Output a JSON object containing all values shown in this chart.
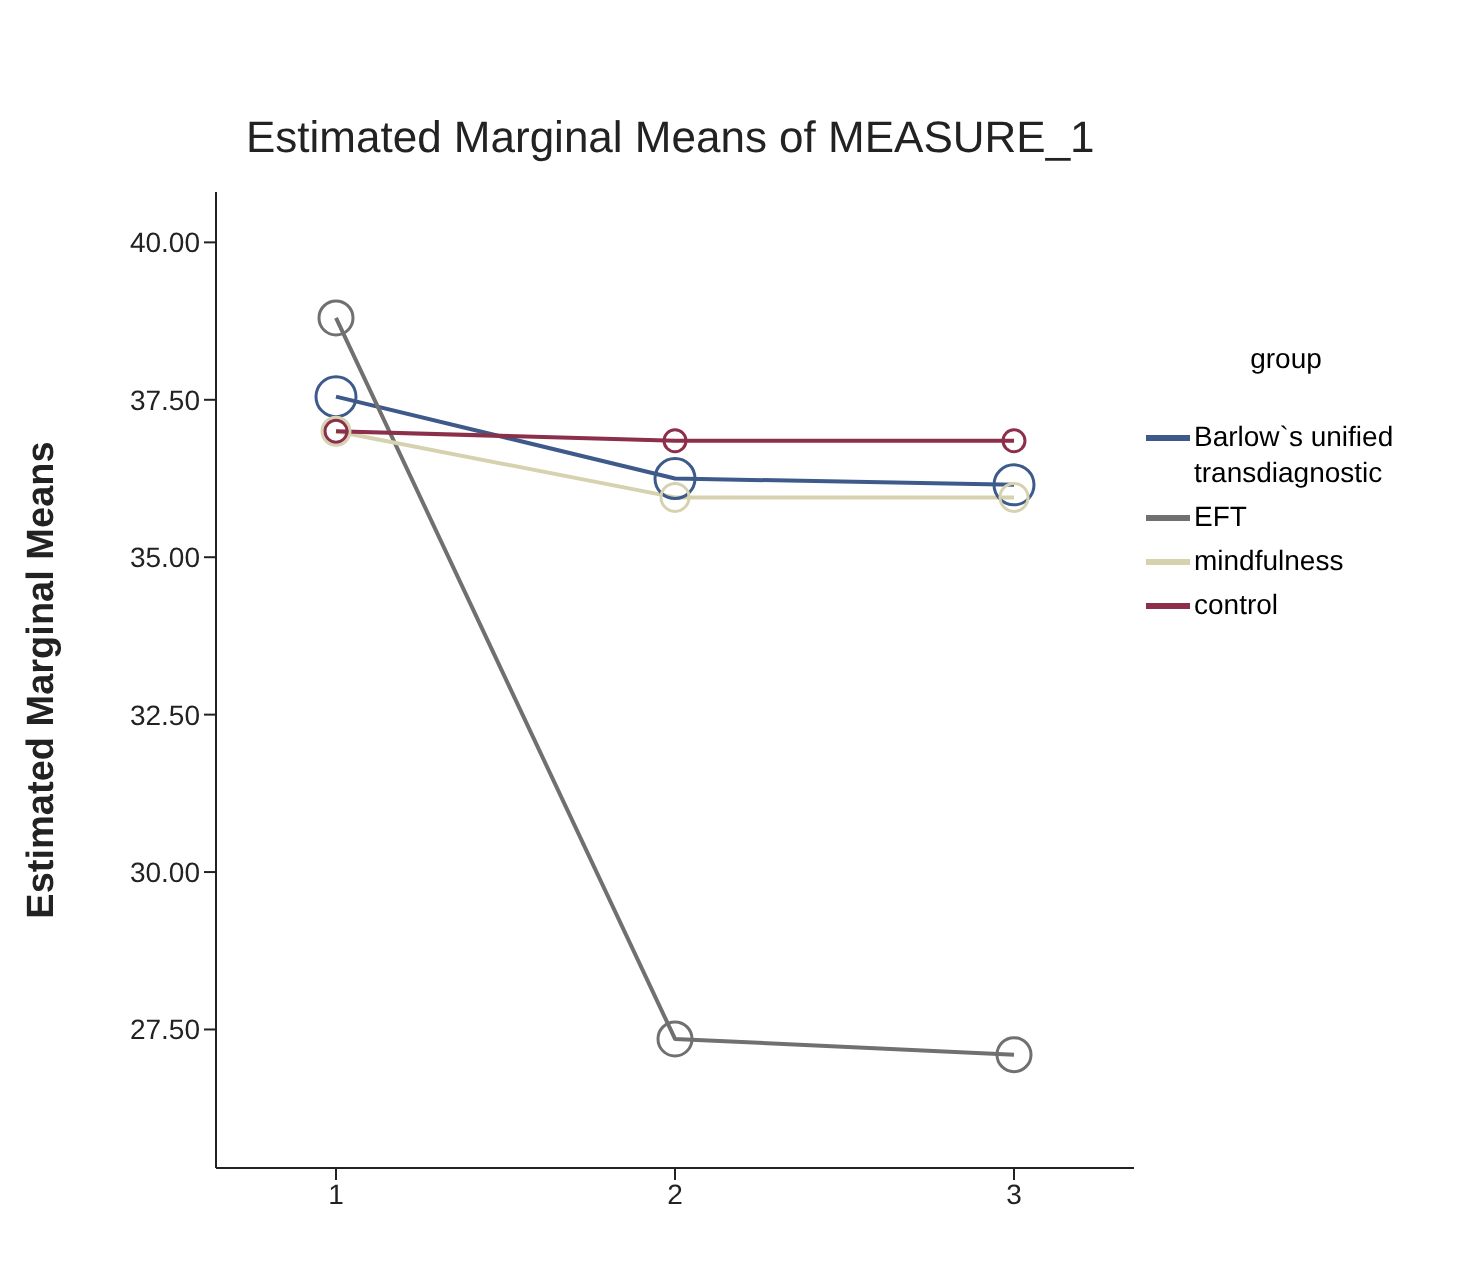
{
  "chart_data": {
    "type": "line",
    "title": "Estimated Marginal Means of MEASURE_1",
    "ylabel": "Estimated Marginal Means",
    "legend_title": "group",
    "categories": [
      "1",
      "2",
      "3"
    ],
    "series": [
      {
        "name": "Barlow`s unified transdiagnostic",
        "color": "#3d5a8a",
        "values": [
          37.55,
          36.25,
          36.15
        ]
      },
      {
        "name": "EFT",
        "color": "#707070",
        "values": [
          38.8,
          27.35,
          27.1
        ]
      },
      {
        "name": "mindfulness",
        "color": "#d6d2b0",
        "values": [
          37.0,
          35.95,
          35.95
        ]
      },
      {
        "name": "control",
        "color": "#8b2f4a",
        "values": [
          37.0,
          36.85,
          36.85
        ]
      }
    ],
    "ylim": [
      25.3,
      40.8
    ],
    "yticks": [
      {
        "value": 27.5,
        "label": "27.50"
      },
      {
        "value": 30,
        "label": "30.00"
      },
      {
        "value": 32.5,
        "label": "32.50"
      },
      {
        "value": 35,
        "label": "35.00"
      },
      {
        "value": 37.5,
        "label": "37.50"
      },
      {
        "value": 40,
        "label": "40.00"
      }
    ],
    "grid": false,
    "legend": "right",
    "marker": "circle",
    "line_style": "solid"
  }
}
